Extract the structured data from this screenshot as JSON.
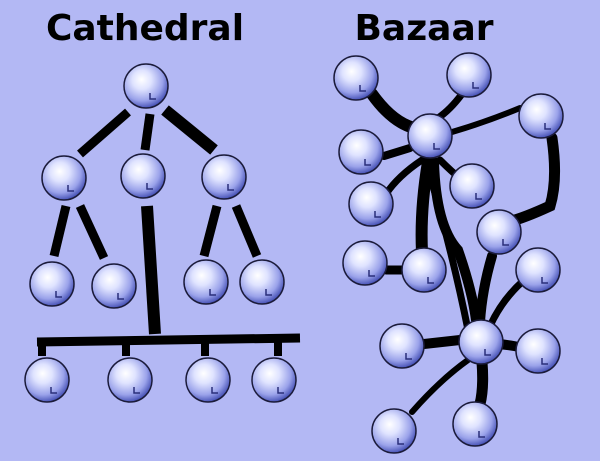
{
  "titles": {
    "cathedral": "Cathedral",
    "bazaar": "Bazaar"
  },
  "colors": {
    "background": "#b3b8f4",
    "link": "#000000",
    "node_highlight": "#ffffff",
    "node_mid": "#b9c0f3",
    "node_shadow": "#4a55b8"
  }
}
